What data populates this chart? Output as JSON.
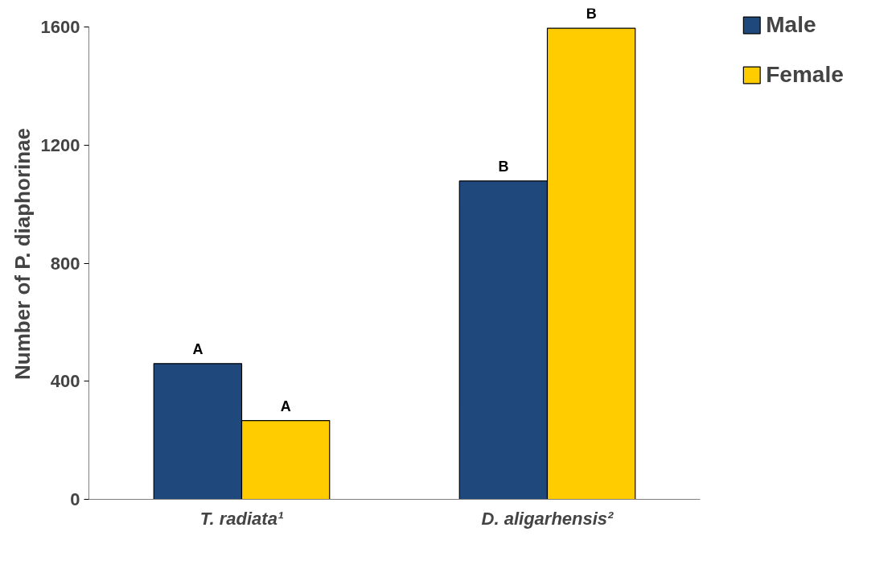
{
  "chart_data": {
    "type": "bar",
    "ylabel": "Number of P. diaphorinae",
    "categories": [
      "T. radiata¹",
      "D. aligarhensis²"
    ],
    "series": [
      {
        "name": "Male",
        "color": "#1f497d",
        "values": [
          460,
          1079
        ]
      },
      {
        "name": "Female",
        "color": "#ffcc00",
        "values": [
          267,
          1597
        ]
      }
    ],
    "ylim": [
      0,
      1600
    ],
    "yticks": [
      0,
      400,
      800,
      1200,
      1600
    ],
    "grid": false,
    "legend": "right",
    "annotations": [
      "A",
      "A",
      "B",
      "B"
    ]
  }
}
